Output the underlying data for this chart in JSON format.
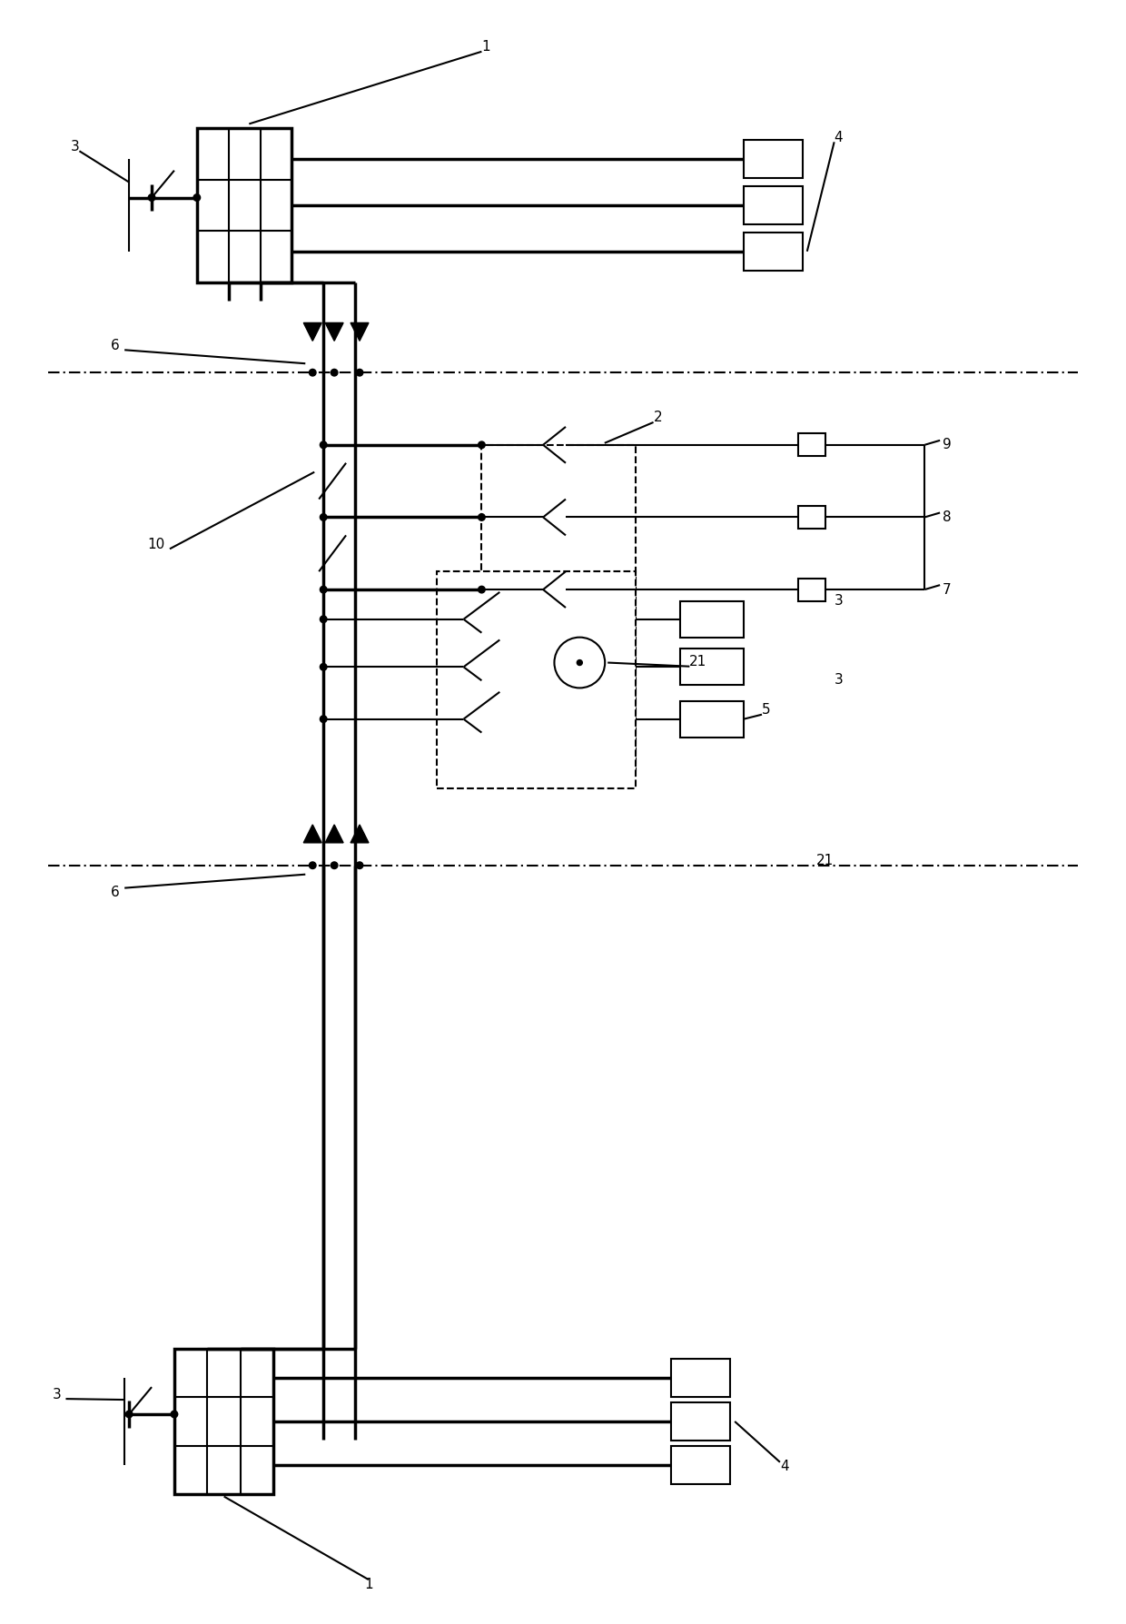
{
  "bg_color": "#ffffff",
  "line_color": "#000000",
  "lw": 1.5,
  "hlw": 2.5,
  "fig_width": 12.4,
  "fig_height": 17.88
}
